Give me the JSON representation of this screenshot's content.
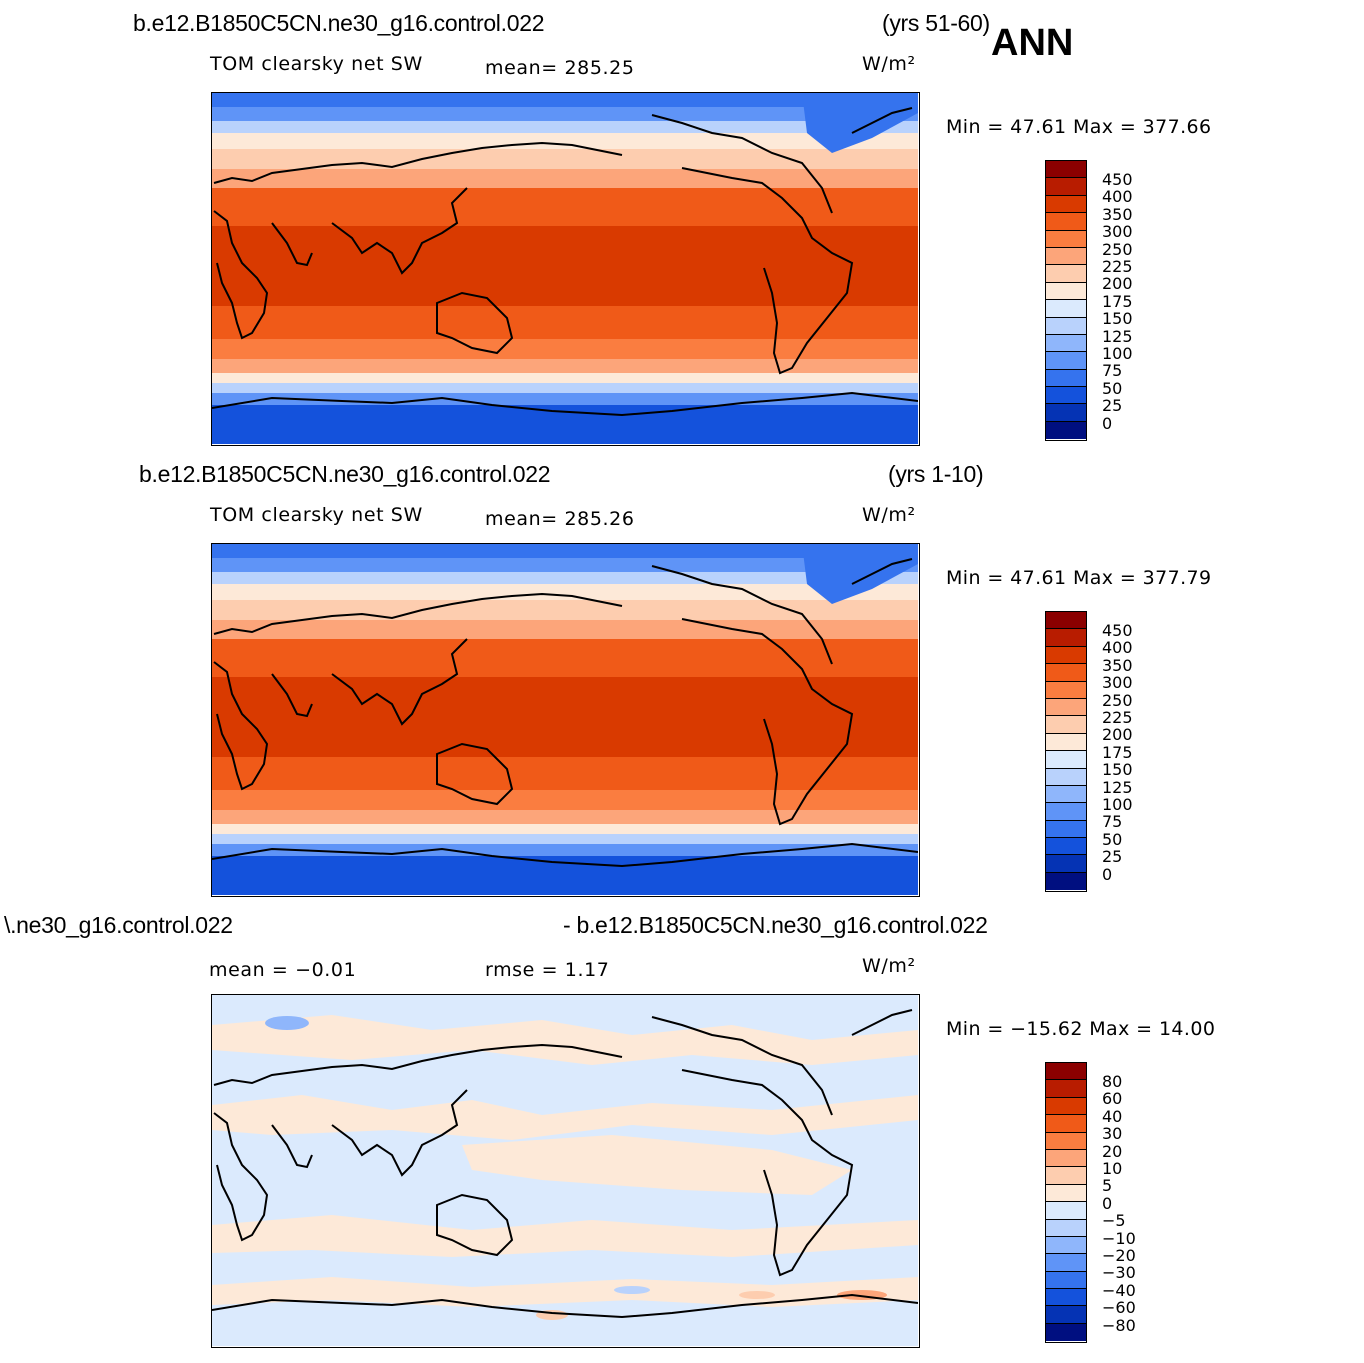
{
  "season": "ANN",
  "units": "W/m²",
  "panels": [
    {
      "case": "b.e12.B1850C5CN.ne30_g16.control.022",
      "years": "(yrs 51-60)",
      "variable": "TOM clearsky net SW",
      "stat1": "mean=  285.25",
      "stat2": "",
      "minmax": "Min =   47.61  Max = 377.66",
      "levels": [
        "450",
        "400",
        "350",
        "300",
        "250",
        "225",
        "200",
        "175",
        "150",
        "125",
        "100",
        "75",
        "50",
        "25",
        "0"
      ]
    },
    {
      "case": "b.e12.B1850C5CN.ne30_g16.control.022",
      "years": "(yrs 1-10)",
      "variable": "TOM clearsky net SW",
      "stat1": "mean=  285.26",
      "stat2": "",
      "minmax": "Min =   47.61  Max = 377.79",
      "levels": [
        "450",
        "400",
        "350",
        "300",
        "250",
        "225",
        "200",
        "175",
        "150",
        "125",
        "100",
        "75",
        "50",
        "25",
        "0"
      ]
    },
    {
      "case": "\\.ne30_g16.control.022",
      "years": "- b.e12.B1850C5CN.ne30_g16.control.022",
      "variable": "",
      "stat1": "mean =   −0.01",
      "stat2": "rmse =    1.17",
      "minmax": "Min = −15.62  Max =   14.00",
      "levels": [
        "80",
        "60",
        "40",
        "30",
        "20",
        "10",
        "5",
        "0",
        "−5",
        "−10",
        "−20",
        "−30",
        "−40",
        "−60",
        "−80"
      ]
    }
  ],
  "colors": {
    "abs_scale": [
      "#8b0000",
      "#b81c00",
      "#d93a00",
      "#f05a18",
      "#fa7d40",
      "#fca57a",
      "#fdcdaf",
      "#fde9d8",
      "#dbeafd",
      "#b9d2fc",
      "#8fb6fb",
      "#5f94f7",
      "#3573ee",
      "#1452dc",
      "#0533b4",
      "#000f80"
    ],
    "diff_scale": [
      "#8b0000",
      "#b81c00",
      "#d93a00",
      "#f05a18",
      "#fa7d40",
      "#fca57a",
      "#fdcdaf",
      "#fde9d8",
      "#dbeafd",
      "#b9d2fc",
      "#8fb6fb",
      "#5f94f7",
      "#3573ee",
      "#1452dc",
      "#0533b4",
      "#000f80"
    ]
  }
}
